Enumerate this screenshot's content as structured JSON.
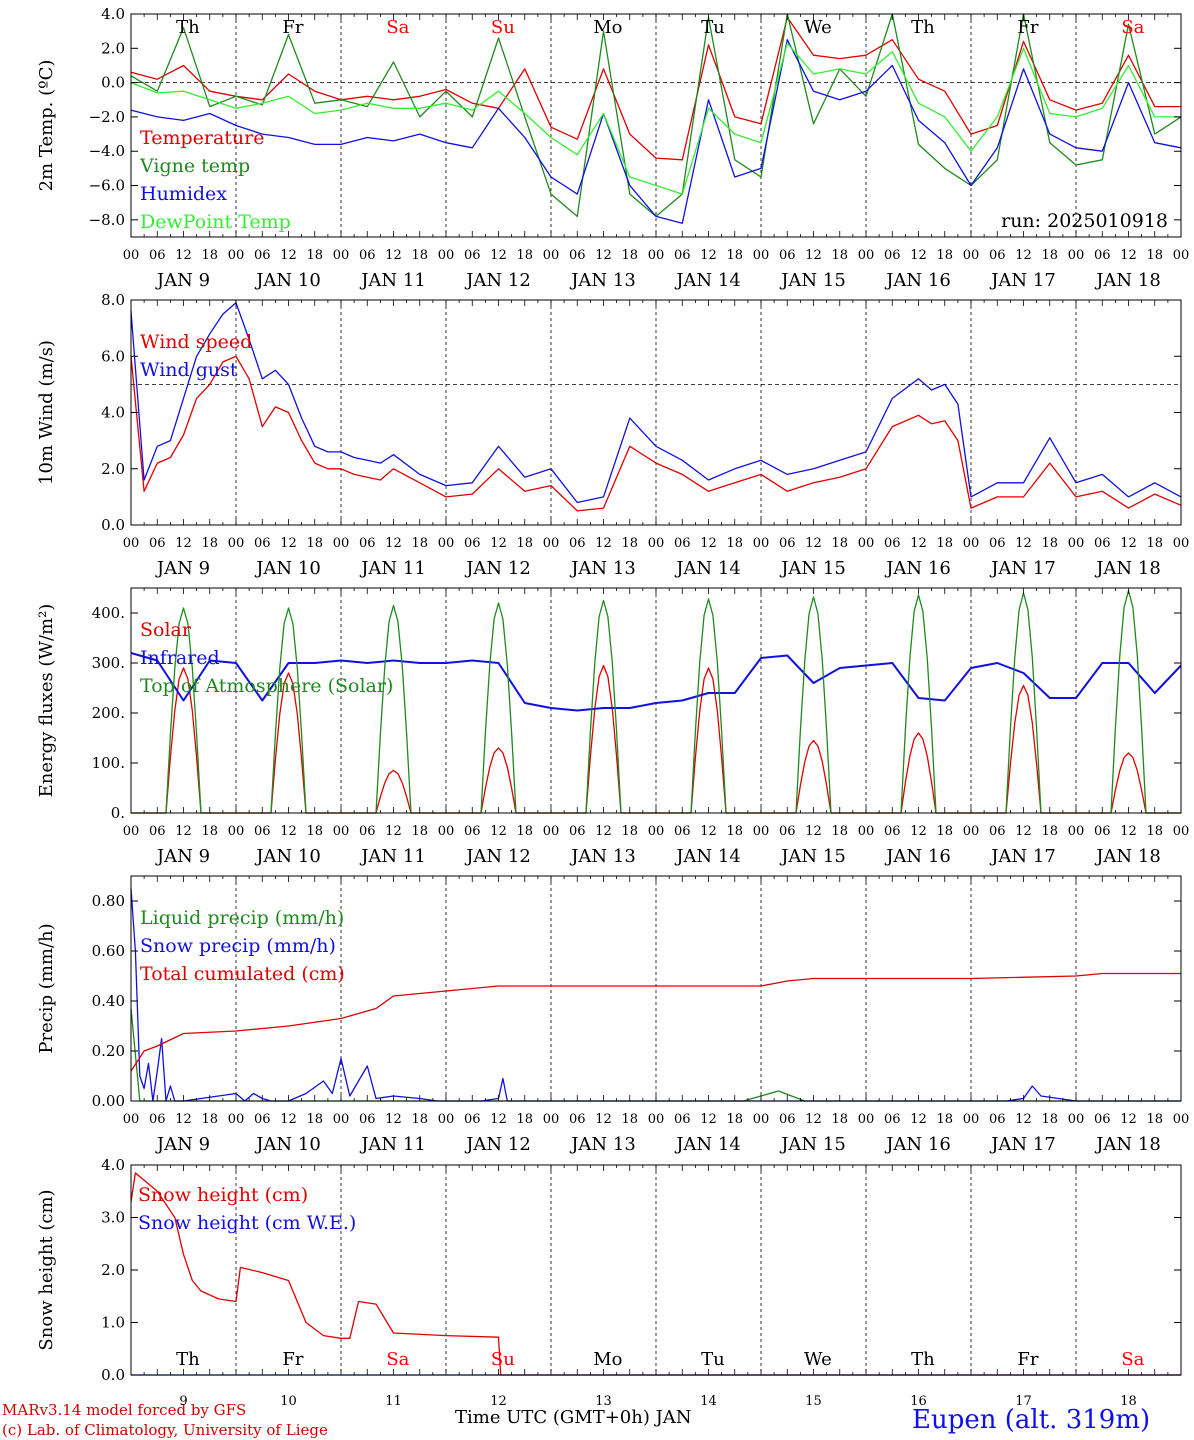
{
  "station": "Eupen (alt. 319m)",
  "footer": [
    "MARv3.14 model forced by GFS",
    "(c) Lab. of Climatology, University of Liege"
  ],
  "xlabel": "Time UTC (GMT+0h) JAN",
  "days": [
    "JAN  9",
    "JAN 10",
    "JAN 11",
    "JAN 12",
    "JAN 13",
    "JAN 14",
    "JAN 15",
    "JAN 16",
    "JAN 17",
    "JAN 18"
  ],
  "day_numbers": [
    "9",
    "10",
    "11",
    "12",
    "13",
    "14",
    "15",
    "16",
    "17",
    "18"
  ],
  "hour_labels": [
    "00",
    "06",
    "12",
    "18"
  ],
  "weekdays": [
    {
      "label": "Th",
      "color": "#000000"
    },
    {
      "label": "Fr",
      "color": "#000000"
    },
    {
      "label": "Sa",
      "color": "#ff0000"
    },
    {
      "label": "Su",
      "color": "#ff0000"
    },
    {
      "label": "Mo",
      "color": "#000000"
    },
    {
      "label": "Tu",
      "color": "#000000"
    },
    {
      "label": "We",
      "color": "#000000"
    },
    {
      "label": "Th",
      "color": "#000000"
    },
    {
      "label": "Fr",
      "color": "#000000"
    },
    {
      "label": "Sa",
      "color": "#ff0000"
    }
  ],
  "chart_data": [
    {
      "type": "line",
      "ylabel": "2m Temp. (ºC)",
      "ylim": [
        -9,
        4
      ],
      "yticks": [
        4,
        2,
        0,
        -2,
        -4,
        -6,
        -8
      ],
      "ytick_labels": [
        "4.0",
        "2.0",
        "0.0",
        "−2.0",
        "−4.0",
        "−6.0",
        "−8.0"
      ],
      "ref_line": 0,
      "annotation": "run: 2025010918",
      "x_unit": "hours from 00 UTC JAN 9",
      "series": [
        {
          "name": "Temperature",
          "color": "#e00000",
          "x": [
            0,
            6,
            12,
            18,
            24,
            30,
            36,
            42,
            48,
            54,
            60,
            66,
            72,
            78,
            84,
            90,
            96,
            102,
            108,
            114,
            120,
            126,
            132,
            138,
            144,
            150,
            156,
            162,
            168,
            174,
            180,
            186,
            192,
            198,
            204,
            210,
            216,
            222,
            228,
            234,
            240
          ],
          "y": [
            0.6,
            0.2,
            1.0,
            -0.5,
            -0.8,
            -1.0,
            0.5,
            -0.5,
            -1.0,
            -0.8,
            -1.0,
            -0.8,
            -0.4,
            -1.2,
            -1.5,
            0.8,
            -2.6,
            -3.3,
            0.8,
            -3.0,
            -4.4,
            -4.5,
            2.2,
            -2.0,
            -2.4,
            3.8,
            1.6,
            1.4,
            1.6,
            2.5,
            0.2,
            -0.5,
            -3.0,
            -2.5,
            2.4,
            -1.0,
            -1.6,
            -1.2,
            1.6,
            -1.4,
            -1.4
          ]
        },
        {
          "name": "Vigne temp",
          "color": "#1e8a1e",
          "x": [
            0,
            6,
            12,
            18,
            24,
            30,
            36,
            42,
            48,
            54,
            60,
            66,
            72,
            78,
            84,
            90,
            96,
            102,
            108,
            114,
            120,
            126,
            132,
            138,
            144,
            150,
            156,
            162,
            168,
            174,
            180,
            186,
            192,
            198,
            204,
            210,
            216,
            222,
            228,
            234,
            240
          ],
          "y": [
            0.4,
            -0.5,
            3.2,
            -1.4,
            -0.8,
            -1.3,
            2.8,
            -1.2,
            -1.0,
            -1.4,
            1.2,
            -2.0,
            -0.5,
            -2.0,
            2.6,
            -2.0,
            -6.5,
            -7.8,
            3.0,
            -6.5,
            -7.8,
            -6.5,
            3.8,
            -4.5,
            -5.5,
            4.0,
            -2.4,
            0.8,
            -0.8,
            4.0,
            -3.6,
            -5.0,
            -6.0,
            -4.5,
            4.0,
            -3.5,
            -4.8,
            -4.5,
            3.4,
            -3.0,
            -2.0
          ]
        },
        {
          "name": "Humidex",
          "color": "#1010e0",
          "x": [
            0,
            6,
            12,
            18,
            24,
            30,
            36,
            42,
            48,
            54,
            60,
            66,
            72,
            78,
            84,
            90,
            96,
            102,
            108,
            114,
            120,
            126,
            132,
            138,
            144,
            150,
            156,
            162,
            168,
            174,
            180,
            186,
            192,
            198,
            204,
            210,
            216,
            222,
            228,
            234,
            240
          ],
          "y": [
            -1.6,
            -2.0,
            -2.2,
            -1.8,
            -2.5,
            -3.0,
            -3.2,
            -3.6,
            -3.6,
            -3.2,
            -3.4,
            -3.0,
            -3.5,
            -3.8,
            -1.5,
            -3.2,
            -5.5,
            -6.5,
            -1.8,
            -6.0,
            -7.8,
            -8.2,
            -1.0,
            -5.5,
            -5.0,
            2.5,
            -0.5,
            -1.0,
            -0.5,
            1.0,
            -2.2,
            -3.5,
            -6.0,
            -3.8,
            0.8,
            -3.0,
            -3.8,
            -4.0,
            0.0,
            -3.5,
            -3.8
          ]
        },
        {
          "name": "DewPoint Temp",
          "color": "#33ee33",
          "x": [
            0,
            6,
            12,
            18,
            24,
            30,
            36,
            42,
            48,
            54,
            60,
            66,
            72,
            78,
            84,
            90,
            96,
            102,
            108,
            114,
            120,
            126,
            132,
            138,
            144,
            150,
            156,
            162,
            168,
            174,
            180,
            186,
            192,
            198,
            204,
            210,
            216,
            222,
            228,
            234,
            240
          ],
          "y": [
            0.0,
            -0.6,
            -0.5,
            -1.0,
            -1.5,
            -1.2,
            -0.8,
            -1.8,
            -1.6,
            -1.2,
            -1.5,
            -1.5,
            -1.2,
            -1.6,
            -0.5,
            -1.8,
            -3.2,
            -4.2,
            -1.8,
            -5.5,
            -6.0,
            -6.5,
            -1.5,
            -3.0,
            -3.5,
            2.3,
            0.5,
            0.8,
            0.5,
            1.8,
            -1.2,
            -2.0,
            -4.0,
            -2.0,
            2.0,
            -1.8,
            -2.0,
            -1.5,
            1.0,
            -2.0,
            -2.0
          ]
        }
      ]
    },
    {
      "type": "line",
      "ylabel": "10m Wind (m/s)",
      "ylim": [
        0,
        8
      ],
      "yticks": [
        0,
        2,
        4,
        6,
        8
      ],
      "ytick_labels": [
        "0.0",
        "2.0",
        "4.0",
        "6.0",
        "8.0"
      ],
      "ref_line": 5,
      "x_unit": "hours from 00 UTC JAN 9",
      "series": [
        {
          "name": "Wind speed",
          "color": "#e00000",
          "x": [
            0,
            3,
            6,
            9,
            12,
            15,
            18,
            21,
            24,
            27,
            30,
            33,
            36,
            39,
            42,
            45,
            48,
            51,
            54,
            57,
            60,
            66,
            72,
            78,
            84,
            90,
            96,
            102,
            108,
            114,
            120,
            126,
            132,
            138,
            144,
            150,
            156,
            162,
            168,
            174,
            180,
            183,
            186,
            189,
            192,
            198,
            204,
            210,
            216,
            222,
            228,
            234,
            240
          ],
          "y": [
            6.0,
            1.2,
            2.2,
            2.4,
            3.2,
            4.5,
            5.0,
            5.8,
            6.0,
            5.2,
            3.5,
            4.2,
            4.0,
            3.0,
            2.2,
            2.0,
            2.0,
            1.8,
            1.7,
            1.6,
            2.0,
            1.5,
            1.0,
            1.1,
            2.0,
            1.2,
            1.4,
            0.5,
            0.6,
            2.8,
            2.2,
            1.8,
            1.2,
            1.5,
            1.8,
            1.2,
            1.5,
            1.7,
            2.0,
            3.5,
            3.9,
            3.6,
            3.7,
            3.0,
            0.6,
            1.0,
            1.0,
            2.2,
            1.0,
            1.2,
            0.6,
            1.1,
            0.7
          ]
        },
        {
          "name": "Wind gust",
          "color": "#1010e0",
          "x": [
            0,
            3,
            6,
            9,
            12,
            15,
            18,
            21,
            24,
            27,
            30,
            33,
            36,
            39,
            42,
            45,
            48,
            51,
            54,
            57,
            60,
            66,
            72,
            78,
            84,
            90,
            96,
            102,
            108,
            114,
            120,
            126,
            132,
            138,
            144,
            150,
            156,
            162,
            168,
            174,
            180,
            183,
            186,
            189,
            192,
            198,
            204,
            210,
            216,
            222,
            228,
            234,
            240
          ],
          "y": [
            7.6,
            1.6,
            2.8,
            3.0,
            4.5,
            6.0,
            6.8,
            7.5,
            7.9,
            6.6,
            5.2,
            5.5,
            5.0,
            3.8,
            2.8,
            2.6,
            2.6,
            2.4,
            2.3,
            2.2,
            2.5,
            1.8,
            1.4,
            1.5,
            2.8,
            1.7,
            2.0,
            0.8,
            1.0,
            3.8,
            2.8,
            2.3,
            1.6,
            2.0,
            2.3,
            1.8,
            2.0,
            2.3,
            2.6,
            4.5,
            5.2,
            4.8,
            5.0,
            4.3,
            1.0,
            1.5,
            1.5,
            3.1,
            1.5,
            1.8,
            1.0,
            1.5,
            1.0
          ]
        }
      ]
    },
    {
      "type": "line",
      "ylabel": "Energy fluxes (W/m²)",
      "ylim": [
        0,
        450
      ],
      "yticks": [
        0,
        100,
        200,
        300,
        400
      ],
      "ytick_labels": [
        "0.",
        "100.",
        "200.",
        "300.",
        "400."
      ],
      "x_unit": "hours from 00 UTC JAN 9",
      "solar_window_hours": [
        8,
        16
      ],
      "series": [
        {
          "name": "Solar",
          "color": "#e00000",
          "daily_peak": [
            290,
            280,
            85,
            130,
            295,
            290,
            145,
            160,
            255,
            120
          ]
        },
        {
          "name": "Infrared",
          "color": "#1010e0",
          "x": [
            0,
            6,
            12,
            18,
            24,
            30,
            36,
            42,
            48,
            54,
            60,
            66,
            72,
            78,
            84,
            90,
            96,
            102,
            108,
            114,
            120,
            126,
            132,
            138,
            144,
            150,
            156,
            162,
            168,
            174,
            180,
            186,
            192,
            198,
            204,
            210,
            216,
            222,
            228,
            234,
            240
          ],
          "y": [
            320,
            305,
            225,
            305,
            300,
            225,
            300,
            300,
            305,
            300,
            305,
            300,
            300,
            305,
            300,
            220,
            210,
            205,
            210,
            210,
            220,
            225,
            240,
            240,
            310,
            315,
            260,
            290,
            295,
            300,
            230,
            225,
            290,
            300,
            280,
            230,
            230,
            300,
            300,
            240,
            295
          ]
        },
        {
          "name": "Top of Atmosphere (Solar)",
          "color": "#1e8a1e",
          "daily_peak": [
            410,
            410,
            415,
            420,
            425,
            428,
            432,
            436,
            440,
            445
          ]
        }
      ]
    },
    {
      "type": "line",
      "ylabel": "Precip (mm/h)",
      "ylim": [
        0,
        0.9
      ],
      "yticks": [
        0,
        0.2,
        0.4,
        0.6,
        0.8
      ],
      "ytick_labels": [
        "0.00",
        "0.20",
        "0.40",
        "0.60",
        "0.80"
      ],
      "x_unit": "hours from 00 UTC JAN 9",
      "series": [
        {
          "name": "Liquid precip (mm/h)",
          "color": "#1e8a1e",
          "x": [
            0,
            2,
            4,
            140,
            148,
            154,
            160,
            240
          ],
          "y": [
            0.37,
            0.0,
            0.0,
            0.0,
            0.04,
            0.0,
            0.0,
            0.0
          ]
        },
        {
          "name": "Snow precip (mm/h)",
          "color": "#1010e0",
          "x": [
            0,
            1,
            2,
            3,
            4,
            5,
            6,
            7,
            8,
            9,
            10,
            11,
            12,
            20,
            24,
            26,
            28,
            30,
            32,
            36,
            40,
            44,
            46,
            48,
            50,
            52,
            54,
            56,
            60,
            66,
            70,
            72,
            76,
            80,
            84,
            85,
            86,
            88,
            96,
            200,
            204,
            206,
            208,
            216,
            240
          ],
          "y": [
            0.85,
            0.6,
            0.1,
            0.05,
            0.15,
            0.0,
            0.12,
            0.25,
            0.0,
            0.06,
            0.0,
            0.0,
            0.0,
            0.02,
            0.03,
            0.0,
            0.03,
            0.01,
            0.0,
            0.0,
            0.03,
            0.08,
            0.03,
            0.17,
            0.02,
            0.08,
            0.14,
            0.01,
            0.02,
            0.01,
            0.0,
            0.0,
            0.0,
            0.0,
            0.01,
            0.09,
            0.0,
            0.0,
            0.0,
            0.0,
            0.01,
            0.06,
            0.02,
            0.0,
            0.0
          ]
        },
        {
          "name": "Total cumulated (cm)",
          "color": "#e00000",
          "x": [
            0,
            3,
            6,
            12,
            24,
            36,
            48,
            56,
            60,
            72,
            84,
            96,
            120,
            144,
            150,
            156,
            168,
            192,
            216,
            222,
            240
          ],
          "y": [
            0.12,
            0.2,
            0.22,
            0.27,
            0.28,
            0.3,
            0.33,
            0.37,
            0.42,
            0.44,
            0.46,
            0.46,
            0.46,
            0.46,
            0.48,
            0.49,
            0.49,
            0.49,
            0.5,
            0.51,
            0.51
          ]
        }
      ]
    },
    {
      "type": "line",
      "ylabel": "Snow height (cm)",
      "ylim": [
        0,
        4
      ],
      "yticks": [
        0,
        1,
        2,
        3,
        4
      ],
      "ytick_labels": [
        "0.0",
        "1.0",
        "2.0",
        "3.0",
        "4.0"
      ],
      "x_unit": "hours from 00 UTC JAN 9",
      "series": [
        {
          "name": "Snow height (cm)",
          "color": "#e00000",
          "x": [
            0,
            1,
            6,
            10,
            12,
            14,
            16,
            20,
            24,
            25,
            30,
            36,
            40,
            44,
            48,
            50,
            52,
            56,
            60,
            72,
            84,
            84.5,
            96,
            240
          ],
          "y": [
            3.3,
            3.85,
            3.5,
            3.0,
            2.3,
            1.8,
            1.6,
            1.45,
            1.4,
            2.05,
            1.95,
            1.8,
            1.0,
            0.75,
            0.7,
            0.7,
            1.4,
            1.35,
            0.8,
            0.75,
            0.72,
            0.0,
            0.0,
            0.0
          ]
        },
        {
          "name": "Snow height (cm W.E.)",
          "color": "#1010e0",
          "x": [
            0,
            240
          ],
          "y": [
            0.0,
            0.0
          ]
        }
      ]
    }
  ]
}
